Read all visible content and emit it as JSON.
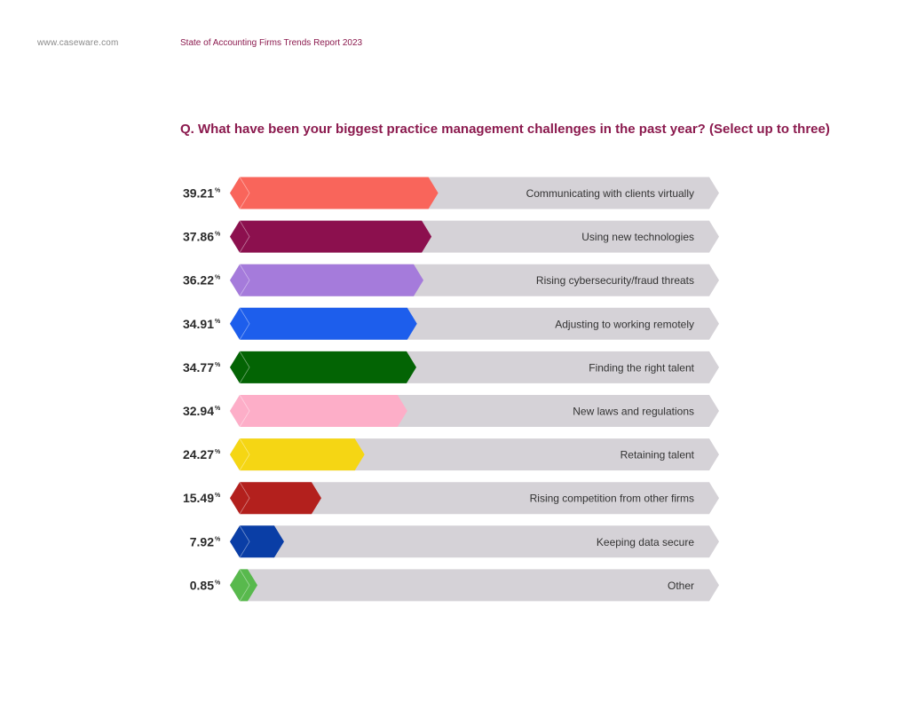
{
  "header": {
    "site": "www.caseware.com",
    "report": "State of Accounting Firms Trends Report 2023"
  },
  "chart_data": {
    "type": "bar",
    "title": "Q. What have been your biggest practice management challenges in the past year? (Select up to three)",
    "unit": "%",
    "xlim": [
      0,
      100
    ],
    "categories": [
      "Communicating with clients virtually",
      "Using new technologies",
      "Rising cybersecurity/fraud threats",
      "Adjusting to working remotely",
      "Finding the right talent",
      "New laws and regulations",
      "Retaining talent",
      "Rising competition from other firms",
      "Keeping data secure",
      "Other"
    ],
    "values": [
      39.21,
      37.86,
      36.22,
      34.91,
      34.77,
      32.94,
      24.27,
      15.49,
      7.92,
      0.85
    ],
    "colors": [
      "#f9655b",
      "#8c104e",
      "#a57bdb",
      "#1d5eec",
      "#036404",
      "#fdaec8",
      "#f5d614",
      "#b3201d",
      "#0a3ea6",
      "#58b94d"
    ],
    "track_color": "#d5d2d7",
    "orientation": "horizontal"
  }
}
